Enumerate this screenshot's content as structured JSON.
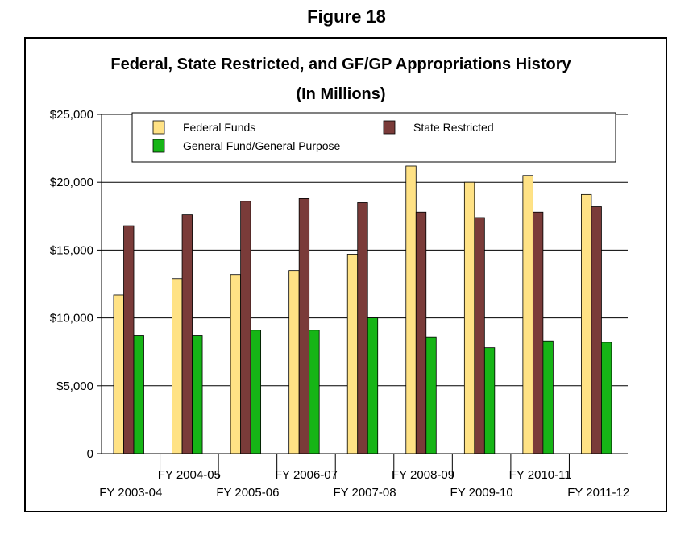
{
  "figure_label": "Figure 18",
  "chart_data": {
    "type": "bar",
    "title": "Federal, State Restricted, and GF/GP Appropriations History",
    "subtitle": "(In Millions)",
    "xlabel": "",
    "ylabel": "",
    "ylim": [
      0,
      25000
    ],
    "yticks": [
      0,
      5000,
      10000,
      15000,
      20000,
      25000
    ],
    "ytick_labels": [
      "0",
      "$5,000",
      "$10,000",
      "$15,000",
      "$20,000",
      "$25,000"
    ],
    "grid": true,
    "legend_position": "top",
    "categories": [
      "FY 2003-04",
      "FY 2004-05",
      "FY 2005-06",
      "FY 2006-07",
      "FY 2007-08",
      "FY 2008-09",
      "FY 2009-10",
      "FY 2010-11",
      "FY 2011-12"
    ],
    "series": [
      {
        "name": "Federal Funds",
        "color": "#FFE285",
        "values": [
          11700,
          12900,
          13200,
          13500,
          14700,
          21200,
          20000,
          20500,
          19100
        ]
      },
      {
        "name": "State Restricted",
        "color": "#7A3B39",
        "values": [
          16800,
          17600,
          18600,
          18800,
          18500,
          17800,
          17400,
          17800,
          18200
        ]
      },
      {
        "name": "General Fund/General Purpose",
        "color": "#16B516",
        "values": [
          8700,
          8700,
          9100,
          9100,
          10000,
          8600,
          7800,
          8300,
          8200
        ]
      }
    ]
  }
}
